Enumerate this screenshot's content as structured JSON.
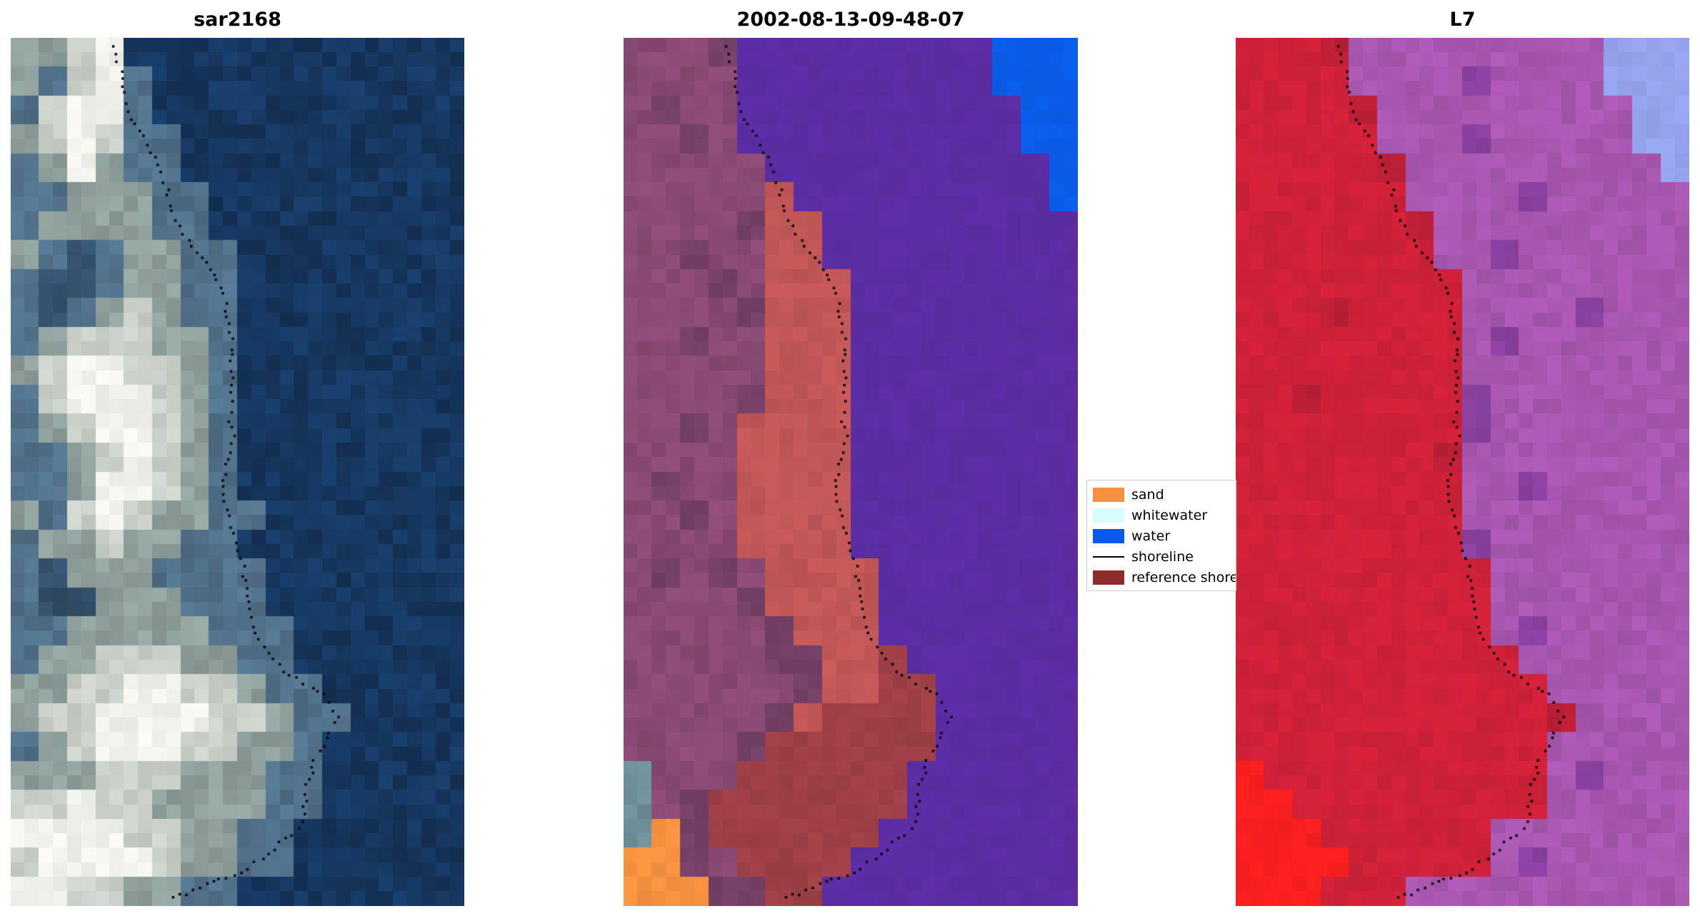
{
  "chart_data": {
    "type": "heatmap",
    "layout": {
      "background": "#ffffff",
      "axes": "off",
      "legend_position": "between second and third panel, vertically centered"
    },
    "panels": [
      {
        "title": "sar2168",
        "cols": 16,
        "rows": 30,
        "palette": {
          "#": "#f2f2ec",
          "w": "#c9cfc9",
          "g": "#8fa09c",
          "b": "#51718a",
          "s": "#33506b",
          "d": "#16375f"
        },
        "grid": [
          "ggw#dddddddddddd",
          "gbw#bddddddddddd",
          "bw##bddddddddddd",
          "gw#wbbdddddddddd",
          "bg#gbbdddddddddd",
          "bbgggbbddddddddd",
          "bggggbbddddddddd",
          "gbsbggbbdddddddd",
          "bssbggbbdddddddd",
          "bsbgwgbbdddddddd",
          "bgwwwggbdddddddd",
          "gw##wwgbdddddddd",
          "bw###wgbdddddddd",
          "bgw##wgbdddddddd",
          "bbgw#wgbdddddddd",
          "bbg##wgbdddddddd",
          "gbw#wggbbddddddd",
          "bggwggbbdddddddd",
          "bsgggbbbbddddddd",
          "bssgggbbbddddddd",
          "bbgggggbbbdddddd",
          "bggwwwggbbdddddd",
          "ggww##wwgbbddddd",
          "gww####wwgbbdddd",
          "bgw###wwggbddddd",
          "gggwwwgggbbddddd",
          "ww#wwggggbbddddd",
          "####wwggbbdddddd",
          "w####wggbbdddddd",
          "##wwggbbdddddddd"
        ]
      },
      {
        "title": "2002-08-13-09-48-07",
        "cols": 16,
        "rows": 30,
        "palette": {
          "P": "#5b2da3",
          "p": "#8a4a74",
          "q": "#744066",
          "r": "#c25757",
          "R": "#9e4046",
          "B": "#0a5ce8",
          "o": "#f59140",
          "t": "#6d8e99"
        },
        "grid": [
          "pppqPPPPPPPPPBBB",
          "ppppPPPPPPPPPBBB",
          "pqppPPPPPPPPPPBB",
          "ppqpPPPPPPPPPPBB",
          "pppppPPPPPPPPPPB",
          "ppppprPPPPPPPPPB",
          "ppppqrrPPPPPPPPP",
          "ppqpprrPPPPPPPPP",
          "pppqprrrPPPPPPPP",
          "ppppqrrrPPPPPPPP",
          "ppqpprrrPPPPPPPP",
          "ppppprrrPPPPPPPP",
          "ppppqrrrPPPPPPPP",
          "ppqprrrrPPPPPPPP",
          "pppprrrrPPPPPPPP",
          "pqpprrrrPPPPPPPP",
          "ppqprrrrPPPPPPPP",
          "pppprrrrPPPPPPPP",
          "pqpqprrrrPPPPPPP",
          "ppppqrrrrPPPPPPP",
          "pppppqrrrPPPPPPP",
          "pppppqqrrRPPPPPP",
          "ppppppqrrRRPPPPP",
          "pppppqrRRRRPPPPP",
          "ppppqRRRRRRPPPPP",
          "tpppRRRRRRPPPPPP",
          "tpqRRRRRRRPPPPPP",
          "toqRRRRRRPPPPPPP",
          "ooqpRRRRPPPPPPPP",
          "oooqqRRPPPPPPPPP"
        ]
      },
      {
        "title": "L7",
        "cols": 16,
        "rows": 30,
        "palette": {
          "C": "#cf2138",
          "c": "#b91f36",
          "M": "#a857b0",
          "m": "#8a41a0",
          "L": "#96a4ee",
          "F": "#fb1f1f"
        },
        "grid": [
          "CCCcMMMMMMMMMLLL",
          "CCCCMMMMmMMMMLLL",
          "CCCCcMMMMMMMMMLL",
          "CCCCCMMMmMMMMMLL",
          "CCCCCcMMMMMMMMML",
          "CCCCCCMMMMmMMMMM",
          "CCCCCCcMMMMMMMMM",
          "CCCCCCCMMmMMMMMM",
          "CCCCCCCCMMMMMMMM",
          "CCCcCCCCMMMMmMMM",
          "CCCCCCCCMmMMMMMM",
          "CCCCCCCCMMMMMMMM",
          "CCcCCCCCmMMMMMMM",
          "CCCCCCCCmMMMMMMM",
          "CCCCCCCcMMMMMMMM",
          "CCCCCCCCMMmMMMMM",
          "CCCCCCCCMMMMMMMM",
          "CCCCCCCCmMMMMMMM",
          "CCCCCCCCCMMMMMMM",
          "CCCCCCCCCMMMMMMM",
          "CCCCCCCCCMmMMMMM",
          "CCCCCCCCCCMMMMMM",
          "CCCCCCCCCCCMMMMM",
          "CCCCCCCCCCCcMMMM",
          "CCCCCCCCCCCMMMMM",
          "FCCCCCCCCCCMmMMM",
          "FFCCCCCCCCCMMMMM",
          "FFFCCCCCCMMMMMMM",
          "FFFFCCCCCMmMMMMM",
          "FFFCCCMMMMMMMMMM"
        ]
      }
    ],
    "shoreline": {
      "color": "#000000",
      "style": "dotted",
      "points": [
        [
          0.225,
          0.0
        ],
        [
          0.25,
          0.055
        ],
        [
          0.26,
          0.085
        ],
        [
          0.31,
          0.13
        ],
        [
          0.34,
          0.165
        ],
        [
          0.36,
          0.21
        ],
        [
          0.43,
          0.26
        ],
        [
          0.47,
          0.295
        ],
        [
          0.485,
          0.34
        ],
        [
          0.49,
          0.4
        ],
        [
          0.483,
          0.44
        ],
        [
          0.49,
          0.46
        ],
        [
          0.47,
          0.51
        ],
        [
          0.468,
          0.535
        ],
        [
          0.5,
          0.58
        ],
        [
          0.513,
          0.61
        ],
        [
          0.53,
          0.66
        ],
        [
          0.54,
          0.685
        ],
        [
          0.6,
          0.73
        ],
        [
          0.695,
          0.757
        ],
        [
          0.72,
          0.783
        ],
        [
          0.67,
          0.83
        ],
        [
          0.65,
          0.87
        ],
        [
          0.645,
          0.905
        ],
        [
          0.57,
          0.94
        ],
        [
          0.525,
          0.957
        ],
        [
          0.43,
          0.975
        ],
        [
          0.34,
          0.995
        ]
      ]
    },
    "legend": {
      "entries": [
        {
          "label": "sand",
          "type": "patch",
          "color": "#f59140"
        },
        {
          "label": "whitewater",
          "type": "patch",
          "color": "#d8fbfd"
        },
        {
          "label": "water",
          "type": "patch",
          "color": "#0a58ee"
        },
        {
          "label": "shoreline",
          "type": "line",
          "color": "#000000"
        },
        {
          "label": "reference shoreline",
          "type": "patch",
          "color": "#8f2c2c"
        }
      ]
    }
  }
}
